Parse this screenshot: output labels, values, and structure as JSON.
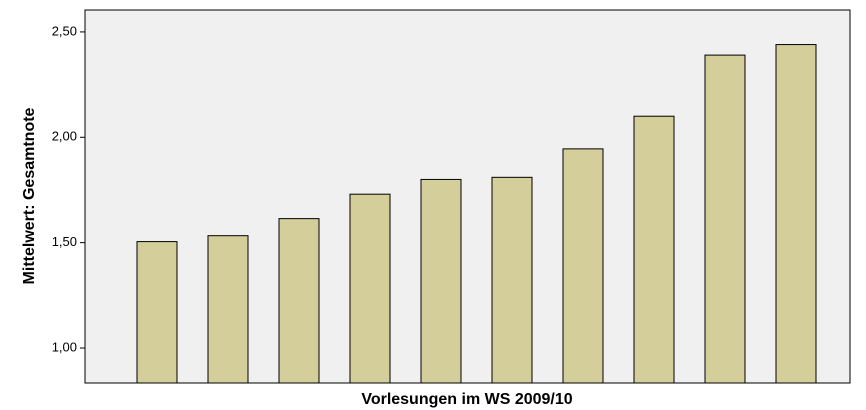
{
  "chart_data": {
    "type": "bar",
    "x_label": "Vorlesungen im WS 2009/10",
    "y_label": "Mittelwert: Gesamtnote",
    "categories": [
      null,
      null,
      null,
      null,
      null,
      null,
      null,
      null,
      null,
      null
    ],
    "values": [
      1.505,
      1.533,
      1.614,
      1.73,
      1.8,
      1.81,
      1.945,
      2.1,
      2.39,
      2.44
    ],
    "color": "#d3ce9a",
    "ylim": [
      0.834,
      2.604
    ],
    "yticks": [
      {
        "value": 1.0,
        "label": "1,00"
      },
      {
        "value": 1.5,
        "label": "1,50"
      },
      {
        "value": 2.0,
        "label": "2,00"
      },
      {
        "value": 2.5,
        "label": "2,50"
      }
    ],
    "grid": false
  }
}
